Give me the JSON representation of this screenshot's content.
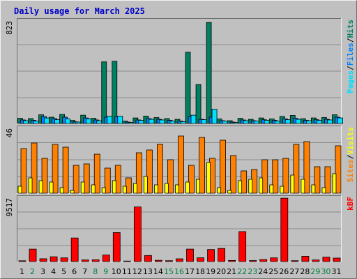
{
  "title": "Daily usage for March 2025",
  "colors": {
    "background": "#c0c0c0",
    "hits": "#008060",
    "files": "#0080ff",
    "pages": "#00e0ff",
    "visits": "#ffff00",
    "sites": "#ff8000",
    "kbytes": "#ff0000",
    "title": "#0000c8",
    "weekday": "#000000",
    "weekend": "#008040"
  },
  "chart_data": [
    {
      "type": "bar",
      "panel": "top",
      "ymax_label": "823",
      "ylim": [
        0,
        823
      ],
      "legend": [
        "Pages",
        "/",
        "Files",
        "/",
        "Hits"
      ],
      "categories": [
        "1",
        "2",
        "3",
        "4",
        "5",
        "6",
        "7",
        "8",
        "9",
        "10",
        "11",
        "12",
        "13",
        "14",
        "15",
        "16",
        "17",
        "18",
        "19",
        "20",
        "21",
        "22",
        "23",
        "24",
        "25",
        "26",
        "27",
        "28",
        "29",
        "30",
        "31"
      ],
      "series": [
        {
          "name": "Hits",
          "values": [
            41,
            39,
            69,
            50,
            72,
            24,
            66,
            41,
            491,
            496,
            19,
            44,
            59,
            47,
            39,
            33,
            568,
            310,
            805,
            36,
            22,
            41,
            33,
            44,
            36,
            56,
            64,
            38,
            44,
            47,
            69
          ]
        },
        {
          "name": "Files",
          "values": [
            28,
            25,
            55,
            39,
            50,
            13,
            44,
            28,
            50,
            55,
            11,
            28,
            39,
            33,
            25,
            19,
            55,
            33,
            50,
            22,
            11,
            28,
            22,
            30,
            25,
            36,
            41,
            25,
            30,
            33,
            50
          ]
        },
        {
          "name": "Pages",
          "values": [
            22,
            19,
            44,
            30,
            36,
            11,
            36,
            22,
            58,
            58,
            8,
            25,
            33,
            28,
            19,
            14,
            66,
            30,
            113,
            19,
            8,
            22,
            19,
            25,
            19,
            30,
            33,
            22,
            25,
            28,
            44
          ]
        }
      ]
    },
    {
      "type": "bar",
      "panel": "middle",
      "ymax_label": "46",
      "ylim": [
        0,
        46
      ],
      "legend": [
        "Sites",
        "/",
        "Visits"
      ],
      "categories": [
        "1",
        "2",
        "3",
        "4",
        "5",
        "6",
        "7",
        "8",
        "9",
        "10",
        "11",
        "12",
        "13",
        "14",
        "15",
        "16",
        "17",
        "18",
        "19",
        "20",
        "21",
        "22",
        "23",
        "24",
        "25",
        "26",
        "27",
        "28",
        "29",
        "30",
        "31"
      ],
      "series": [
        {
          "name": "Sites",
          "values": [
            32,
            36,
            25,
            35,
            33,
            20,
            21,
            28,
            18,
            20,
            11,
            29,
            31,
            35,
            24,
            41,
            20,
            40,
            25,
            38,
            27,
            16,
            17,
            24,
            24,
            25,
            35,
            37,
            19,
            19,
            34
          ]
        },
        {
          "name": "Visits",
          "values": [
            5,
            11,
            9,
            8,
            4,
            2,
            8,
            6,
            4,
            9,
            5,
            7,
            12,
            6,
            7,
            6,
            8,
            10,
            22,
            4,
            2,
            9,
            10,
            11,
            6,
            5,
            13,
            10,
            6,
            4,
            14
          ]
        }
      ]
    },
    {
      "type": "bar",
      "panel": "bottom",
      "ymax_label": "9517",
      "ylim": [
        0,
        9517
      ],
      "legend": [
        "kB",
        "F"
      ],
      "categories": [
        "1",
        "2",
        "3",
        "4",
        "5",
        "6",
        "7",
        "8",
        "9",
        "10",
        "11",
        "12",
        "13",
        "14",
        "15",
        "16",
        "17",
        "18",
        "19",
        "20",
        "21",
        "22",
        "23",
        "24",
        "25",
        "26",
        "27",
        "28",
        "29",
        "30",
        "31"
      ],
      "series": [
        {
          "name": "kB F",
          "values": [
            120,
            1850,
            420,
            710,
            550,
            3500,
            240,
            260,
            980,
            4300,
            80,
            8100,
            900,
            190,
            130,
            410,
            1850,
            560,
            1790,
            1950,
            170,
            4450,
            150,
            300,
            550,
            9400,
            130,
            780,
            240,
            660,
            520
          ]
        }
      ]
    }
  ],
  "days": [
    {
      "label": "1",
      "weekend": false
    },
    {
      "label": "2",
      "weekend": true
    },
    {
      "label": "3",
      "weekend": false
    },
    {
      "label": "4",
      "weekend": false
    },
    {
      "label": "5",
      "weekend": false
    },
    {
      "label": "6",
      "weekend": false
    },
    {
      "label": "7",
      "weekend": false
    },
    {
      "label": "8",
      "weekend": true
    },
    {
      "label": "9",
      "weekend": true
    },
    {
      "label": "10",
      "weekend": false
    },
    {
      "label": "11",
      "weekend": false
    },
    {
      "label": "12",
      "weekend": false
    },
    {
      "label": "13",
      "weekend": false
    },
    {
      "label": "14",
      "weekend": false
    },
    {
      "label": "15",
      "weekend": true
    },
    {
      "label": "16",
      "weekend": true
    },
    {
      "label": "17",
      "weekend": false
    },
    {
      "label": "18",
      "weekend": false
    },
    {
      "label": "19",
      "weekend": false
    },
    {
      "label": "20",
      "weekend": false
    },
    {
      "label": "21",
      "weekend": false
    },
    {
      "label": "22",
      "weekend": true
    },
    {
      "label": "23",
      "weekend": true
    },
    {
      "label": "24",
      "weekend": false
    },
    {
      "label": "25",
      "weekend": false
    },
    {
      "label": "26",
      "weekend": false
    },
    {
      "label": "27",
      "weekend": false
    },
    {
      "label": "28",
      "weekend": false
    },
    {
      "label": "29",
      "weekend": true
    },
    {
      "label": "30",
      "weekend": true
    },
    {
      "label": "31",
      "weekend": false
    }
  ]
}
